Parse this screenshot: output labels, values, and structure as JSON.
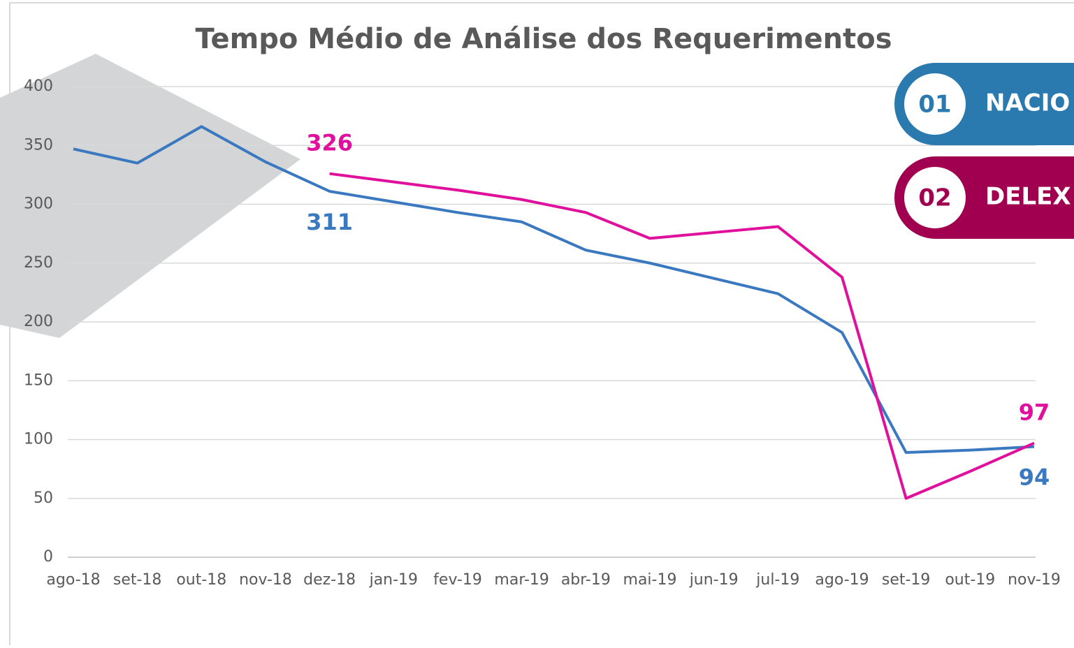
{
  "chart_data": {
    "type": "line",
    "title": "Tempo Médio de Análise  dos Requerimentos",
    "categories": [
      "ago-18",
      "set-18",
      "out-18",
      "nov-18",
      "dez-18",
      "jan-19",
      "fev-19",
      "mar-19",
      "abr-19",
      "mai-19",
      "jun-19",
      "jul-19",
      "ago-19",
      "set-19",
      "out-19",
      "nov-19"
    ],
    "series": [
      {
        "name": "NACIO",
        "badge": "01",
        "color": "#3a78c0",
        "badge_color": "#2a7ab0",
        "values": [
          347,
          335,
          366,
          336,
          311,
          302,
          293,
          285,
          261,
          250,
          237,
          224,
          191,
          89,
          91,
          94
        ]
      },
      {
        "name": "DELEX",
        "badge": "02",
        "color": "#e0109c",
        "badge_color": "#a0004f",
        "values": [
          null,
          null,
          null,
          null,
          326,
          319,
          312,
          304,
          293,
          271,
          276,
          281,
          238,
          50,
          73,
          97
        ]
      }
    ],
    "labeled_points": [
      4,
      15
    ],
    "ylim": [
      0,
      400
    ],
    "yticks": [
      0,
      50,
      100,
      150,
      200,
      250,
      300,
      350,
      400
    ],
    "grid": true
  }
}
